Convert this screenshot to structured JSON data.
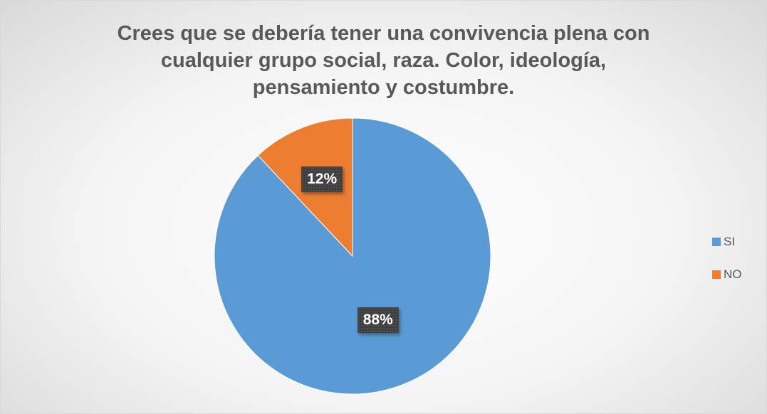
{
  "chart_data": {
    "type": "pie",
    "title": "Crees que se debería tener una convivencia plena con\ncualquier grupo social, raza. Color, ideología,\npensamiento y costumbre.",
    "categories": [
      "SI",
      "NO"
    ],
    "values": [
      88,
      12
    ],
    "data_labels": [
      "88%",
      "12%"
    ],
    "colors": [
      "#5b9bd5",
      "#ed7d31"
    ],
    "legend_position": "right",
    "start_angle": "12 o'clock, clockwise"
  }
}
